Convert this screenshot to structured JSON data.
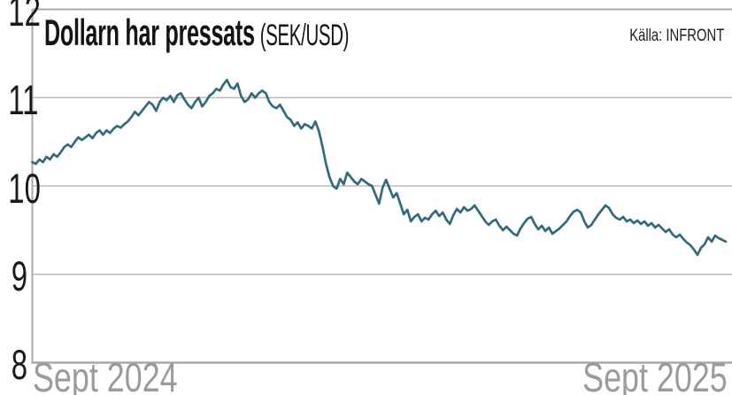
{
  "header": {
    "title": "Dollarn har pressats",
    "subtitle": "(SEK/USD)",
    "source_label": "Källa: INFRONT"
  },
  "colors": {
    "line": "#336b7c",
    "gridline": "#bcbcbc",
    "frame": "#a9a9a9",
    "tick_text": "#1a1a1a",
    "date_text": "#9b9b9b",
    "background": "#ffffff"
  },
  "chart_data": {
    "type": "line",
    "title": "Dollarn har pressats (SEK/USD)",
    "unit": "SEK per USD",
    "xlabel": "",
    "ylabel": "",
    "x_axis": {
      "left_label": "Sept 2024",
      "right_label": "Sept 2025"
    },
    "y_axis": {
      "min": 8,
      "max": 12,
      "ticks": [
        12,
        11,
        10,
        9,
        8
      ],
      "gridlines": [
        11,
        10,
        9
      ]
    },
    "legend": "none",
    "grid": "horizontal-only",
    "series": [
      {
        "name": "SEK/USD",
        "sampling": "evenly spaced Sept 2024 - Sept 2025",
        "values": [
          10.27,
          10.25,
          10.3,
          10.27,
          10.33,
          10.3,
          10.36,
          10.33,
          10.38,
          10.44,
          10.47,
          10.44,
          10.5,
          10.55,
          10.52,
          10.55,
          10.58,
          10.54,
          10.6,
          10.63,
          10.58,
          10.63,
          10.6,
          10.65,
          10.68,
          10.66,
          10.7,
          10.73,
          10.78,
          10.84,
          10.8,
          10.85,
          10.9,
          10.95,
          10.92,
          10.85,
          10.95,
          11.0,
          10.97,
          11.02,
          10.95,
          11.03,
          11.05,
          10.98,
          10.92,
          10.88,
          10.95,
          11.0,
          10.9,
          10.95,
          11.02,
          11.05,
          11.1,
          11.08,
          11.15,
          11.2,
          11.12,
          11.1,
          11.16,
          11.02,
          10.95,
          10.98,
          11.05,
          11.0,
          11.05,
          11.08,
          11.05,
          10.95,
          10.9,
          10.88,
          10.92,
          10.85,
          10.78,
          10.75,
          10.68,
          10.72,
          10.65,
          10.7,
          10.68,
          10.65,
          10.73,
          10.62,
          10.45,
          10.25,
          10.1,
          10.0,
          9.97,
          10.08,
          10.02,
          10.15,
          10.1,
          10.05,
          10.02,
          10.08,
          10.05,
          10.02,
          10.0,
          9.9,
          9.8,
          9.98,
          10.07,
          9.97,
          9.87,
          9.92,
          9.8,
          9.68,
          9.73,
          9.6,
          9.65,
          9.68,
          9.6,
          9.64,
          9.62,
          9.68,
          9.72,
          9.66,
          9.7,
          9.62,
          9.57,
          9.67,
          9.74,
          9.7,
          9.76,
          9.72,
          9.74,
          9.78,
          9.72,
          9.66,
          9.6,
          9.56,
          9.6,
          9.62,
          9.55,
          9.5,
          9.54,
          9.5,
          9.46,
          9.44,
          9.52,
          9.58,
          9.63,
          9.65,
          9.57,
          9.51,
          9.55,
          9.49,
          9.53,
          9.46,
          9.49,
          9.52,
          9.56,
          9.6,
          9.66,
          9.71,
          9.73,
          9.7,
          9.6,
          9.53,
          9.56,
          9.62,
          9.68,
          9.73,
          9.78,
          9.75,
          9.68,
          9.64,
          9.62,
          9.65,
          9.6,
          9.62,
          9.58,
          9.61,
          9.57,
          9.6,
          9.55,
          9.58,
          9.53,
          9.56,
          9.52,
          9.48,
          9.51,
          9.45,
          9.42,
          9.45,
          9.4,
          9.36,
          9.33,
          9.28,
          9.22,
          9.3,
          9.34,
          9.42,
          9.37,
          9.44,
          9.41,
          9.39,
          9.37
        ]
      }
    ]
  }
}
